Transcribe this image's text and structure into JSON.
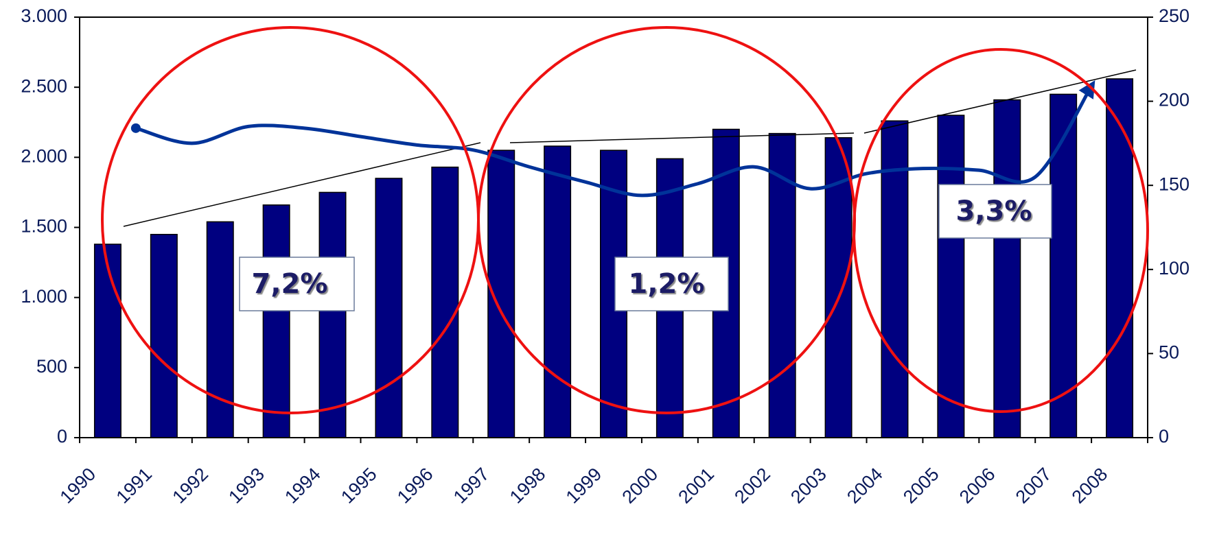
{
  "chart_data": {
    "type": "bar",
    "categories": [
      "1990",
      "1991",
      "1992",
      "1993",
      "1994",
      "1995",
      "1996",
      "1997",
      "1998",
      "1999",
      "2000",
      "2001",
      "2002",
      "2003",
      "2004",
      "2005",
      "2006",
      "2007",
      "2008"
    ],
    "series": [
      {
        "type": "bar",
        "color": "#000080",
        "values": [
          1380,
          1450,
          1540,
          1660,
          1750,
          1850,
          1930,
          2050,
          2080,
          2050,
          1990,
          2200,
          2170,
          2140,
          2260,
          2300,
          2410,
          2450,
          2560
        ]
      },
      {
        "type": "line",
        "axis": "y2",
        "color": "#003399",
        "values": [
          null,
          184,
          175,
          185,
          184,
          179,
          174,
          171,
          161,
          152,
          144,
          151,
          161,
          148,
          157,
          160,
          159,
          155,
          209
        ]
      }
    ],
    "ylim": [
      0,
      3000
    ],
    "yticks": [
      0,
      500,
      {
        "value": 1000,
        "label": "1.000"
      },
      {
        "value": 1500,
        "label": "1.500"
      },
      {
        "value": 2000,
        "label": "2.000"
      },
      {
        "value": 2500,
        "label": "2.500"
      },
      {
        "value": 3000,
        "label": "3.000"
      }
    ],
    "y2lim": [
      0,
      250
    ],
    "y2ticks": [
      0,
      50,
      100,
      150,
      200,
      250
    ],
    "annotations": [
      "7,2%",
      "1,2%",
      "3,3%"
    ],
    "grid": false
  }
}
